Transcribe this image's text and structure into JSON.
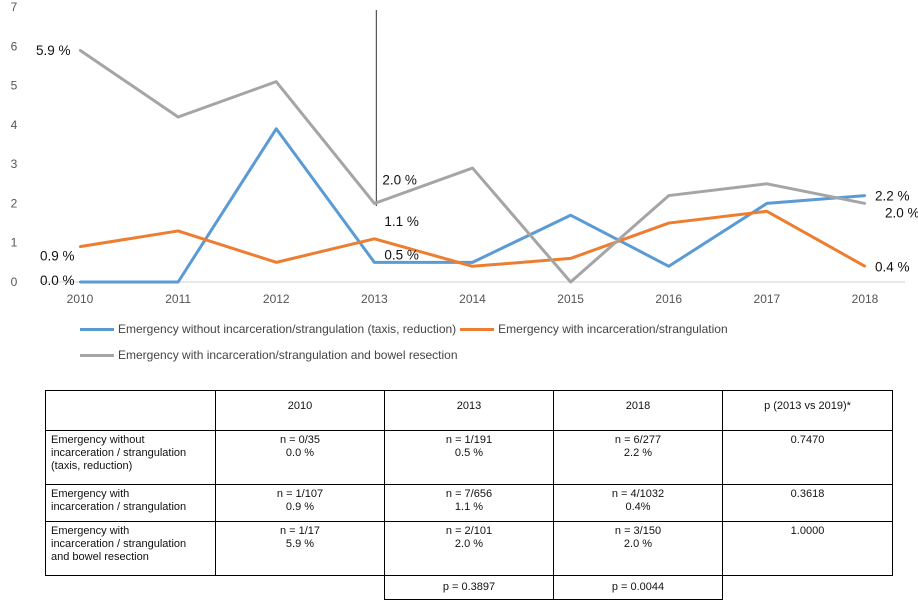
{
  "chart_data": {
    "type": "line",
    "categories": [
      "2010",
      "2011",
      "2012",
      "2013",
      "2014",
      "2015",
      "2016",
      "2017",
      "2018"
    ],
    "ylim": [
      0,
      7
    ],
    "yticks": [
      "0",
      "1",
      "2",
      "3",
      "4",
      "5",
      "6",
      "7"
    ],
    "reference_line_x": "2013",
    "series": [
      {
        "name": "Emergency without incarceration/strangulation (taxis, reduction)",
        "color": "#5b9bd5",
        "values": [
          0.0,
          0.0,
          3.9,
          0.5,
          0.5,
          1.7,
          0.4,
          2.0,
          2.2
        ]
      },
      {
        "name": "Emergency with incarceration/strangulation",
        "color": "#ed7d31",
        "values": [
          0.9,
          1.3,
          0.5,
          1.1,
          0.4,
          0.6,
          1.5,
          1.8,
          0.4
        ]
      },
      {
        "name": "Emergency with incarceration/strangulation and bowel resection",
        "color": "#a5a5a5",
        "values": [
          5.9,
          4.2,
          5.1,
          2.0,
          2.9,
          0.0,
          2.2,
          2.5,
          2.0
        ]
      }
    ],
    "annotations": [
      {
        "text": "5.9 %",
        "x": "2010",
        "y": 5.9,
        "anchor": "left"
      },
      {
        "text": "0.9 %",
        "x": "2010",
        "y": 0.9,
        "anchor": "left"
      },
      {
        "text": "0.0 %",
        "x": "2010",
        "y": 0.0,
        "anchor": "left"
      },
      {
        "text": "2.0 %",
        "x": "2013",
        "y": 2.0,
        "anchor": "right-above"
      },
      {
        "text": "1.1 %",
        "x": "2013",
        "y": 1.1,
        "anchor": "right-above"
      },
      {
        "text": "0.5 %",
        "x": "2013",
        "y": 0.5,
        "anchor": "right-below"
      },
      {
        "text": "2.2 %",
        "x": "2018",
        "y": 2.2,
        "anchor": "right"
      },
      {
        "text": "2.0 %",
        "x": "2018",
        "y": 2.0,
        "anchor": "right-below"
      },
      {
        "text": "0.4 %",
        "x": "2018",
        "y": 0.4,
        "anchor": "right"
      }
    ]
  },
  "legend": [
    "Emergency without incarceration/strangulation (taxis, reduction)",
    "Emergency with incarceration/strangulation",
    "Emergency with incarceration/strangulation and bowel resection"
  ],
  "table": {
    "headers": [
      "",
      "2010",
      "2013",
      "2018",
      "p (2013 vs 2019)*"
    ],
    "rows": [
      {
        "label": "Emergency without\nincarceration / strangulation\n(taxis, reduction)",
        "c2010": "n = 0/35\n0.0 %",
        "c2013": "n = 1/191\n0.5 %",
        "c2018": "n = 6/277\n2.2 %",
        "p": "0.7470"
      },
      {
        "label": "Emergency with\nincarceration / strangulation",
        "c2010": "n = 1/107\n0.9 %",
        "c2013": "n = 7/656\n1.1 %",
        "c2018": "n = 4/1032\n0.4%",
        "p": "0.3618"
      },
      {
        "label": "Emergency with\nincarceration / strangulation\nand bowel resection",
        "c2010": "n = 1/17\n5.9 %",
        "c2013": "n = 2/101\n2.0 %",
        "c2018": "n = 3/150\n2.0 %",
        "p": "1.0000"
      }
    ],
    "footer": {
      "p2013": "p = 0.3897",
      "p2018": "p = 0.0044"
    }
  }
}
